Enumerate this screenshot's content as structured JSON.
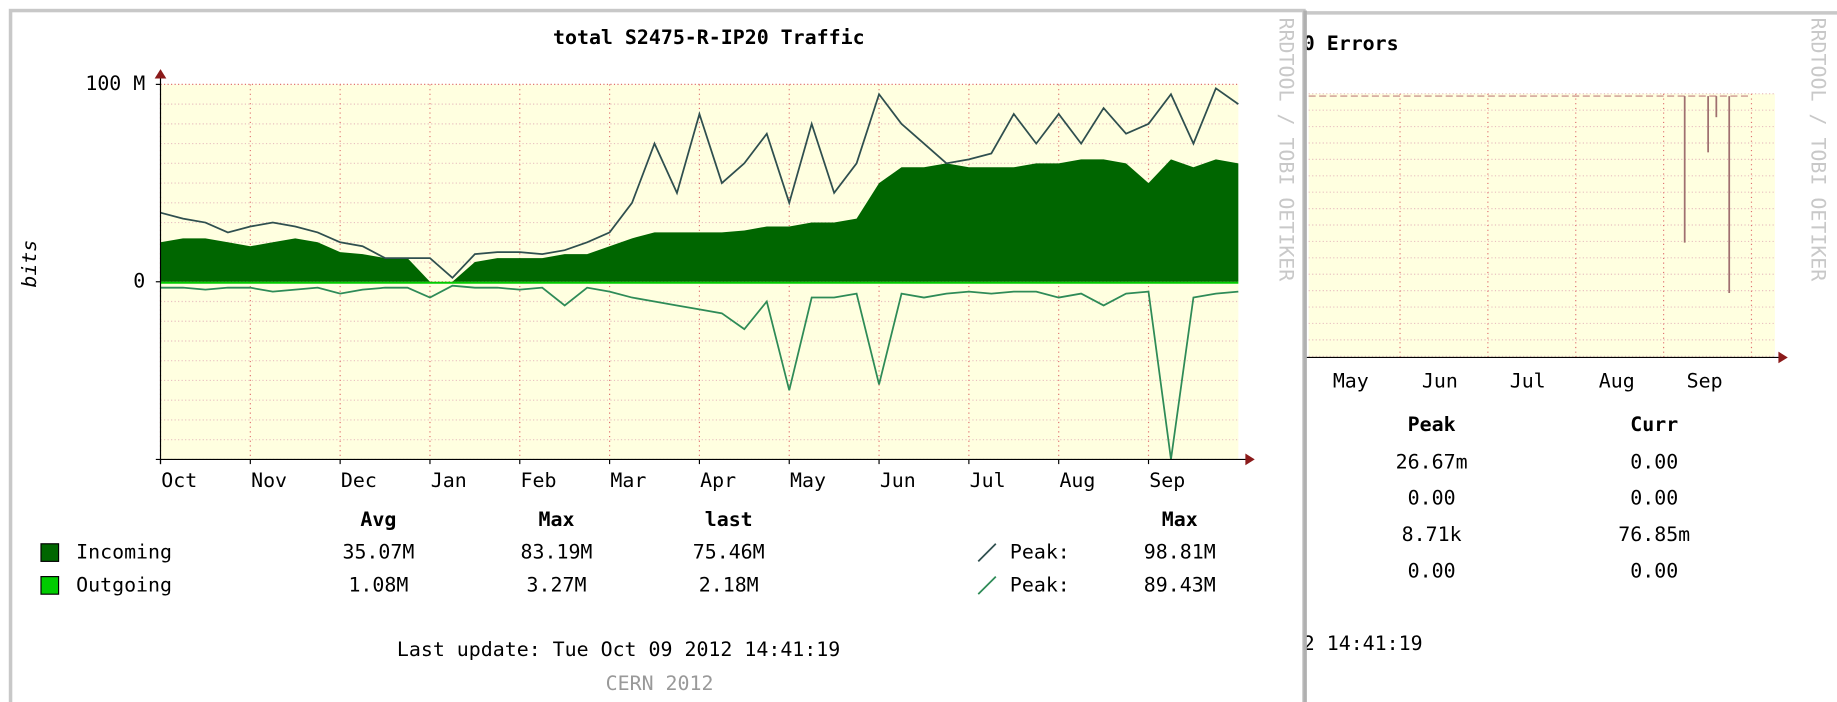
{
  "chart_data": {
    "type": "area",
    "title": "total S2475-R-IP20 Traffic",
    "y_label": "bits",
    "categories": [
      "Oct",
      null,
      null,
      null,
      "Nov",
      null,
      null,
      null,
      "Dec",
      null,
      null,
      null,
      "Jan",
      null,
      null,
      null,
      "Feb",
      null,
      null,
      null,
      "Mar",
      null,
      null,
      null,
      "Apr",
      null,
      null,
      null,
      "May",
      null,
      null,
      null,
      "Jun",
      null,
      null,
      null,
      "Jul",
      null,
      null,
      null,
      "Aug",
      null,
      null,
      null,
      "Sep",
      null,
      null,
      null,
      null
    ],
    "ylim": [
      -90,
      100
    ],
    "yticks": [
      {
        "value": 100,
        "label": "100 M"
      },
      0
    ],
    "minor_yticks": [
      -90,
      -80,
      -70,
      -60,
      -50,
      -40,
      -30,
      -20,
      -10,
      10,
      20,
      30,
      40,
      50,
      60,
      70,
      80,
      90
    ],
    "grid": true,
    "legend_columns": [
      "Avg",
      "Max",
      "last",
      "Max"
    ],
    "series": [
      {
        "name": "Incoming",
        "color": "#006600",
        "style": "area",
        "stats": [
          "35.07M",
          "83.19M",
          "75.46M"
        ],
        "values": [
          20,
          22,
          22,
          20,
          18,
          20,
          22,
          20,
          15,
          14,
          12,
          12,
          0,
          0,
          10,
          12,
          12,
          12,
          14,
          14,
          18,
          22,
          25,
          25,
          25,
          25,
          26,
          28,
          28,
          30,
          30,
          32,
          50,
          58,
          58,
          60,
          58,
          58,
          58,
          60,
          60,
          62,
          62,
          60,
          50,
          62,
          58,
          62,
          60
        ]
      },
      {
        "name": "Outgoing",
        "color": "#00cc00",
        "style": "area",
        "stats": [
          "1.08M",
          "3.27M",
          "2.18M"
        ],
        "values": [
          -1,
          -1,
          -1,
          -1,
          -1,
          -1,
          -1,
          -1,
          -1,
          -1,
          -1,
          -1,
          -1,
          -1,
          -1,
          -1,
          -1,
          -1,
          -1,
          -1,
          -1,
          -1,
          -1,
          -1,
          -1,
          -1,
          -1,
          -1,
          -1,
          -1,
          -1,
          -1,
          -1,
          -1,
          -1,
          -1,
          -1,
          -1,
          -1,
          -1,
          -1,
          -1,
          -1,
          -1,
          -1,
          -1,
          -1,
          -1,
          -1
        ]
      },
      {
        "name": "Peak:",
        "color": "#2f4f4f",
        "style": "line",
        "stats": [
          "98.81M"
        ],
        "values": [
          35,
          32,
          30,
          25,
          28,
          30,
          28,
          25,
          20,
          18,
          12,
          12,
          12,
          2,
          14,
          15,
          15,
          14,
          16,
          20,
          25,
          40,
          70,
          45,
          85,
          50,
          60,
          75,
          40,
          80,
          45,
          60,
          95,
          80,
          70,
          60,
          62,
          65,
          85,
          70,
          85,
          70,
          88,
          75,
          80,
          95,
          70,
          98,
          90
        ]
      },
      {
        "name": "Peak:",
        "color": "#2e8b57",
        "style": "line",
        "stats": [
          "89.43M"
        ],
        "values": [
          -3,
          -3,
          -4,
          -3,
          -3,
          -5,
          -4,
          -3,
          -6,
          -4,
          -3,
          -3,
          -8,
          -2,
          -3,
          -3,
          -4,
          -3,
          -12,
          -3,
          -5,
          -8,
          -10,
          -12,
          -14,
          -16,
          -24,
          -10,
          -55,
          -8,
          -8,
          -6,
          -52,
          -6,
          -8,
          -6,
          -5,
          -6,
          -5,
          -5,
          -8,
          -6,
          -12,
          -6,
          -5,
          -90,
          -8,
          -6,
          -5
        ]
      }
    ],
    "last_update": "Last update: Tue Oct 09 2012 14:41:19",
    "credit": "CERN 2012",
    "watermark": "RRDTOOL / TOBI OETIKER"
  },
  "errors_panel": {
    "title": "0 Errors",
    "months": [
      "May",
      "Jun",
      "Jul",
      "Aug",
      "Sep"
    ],
    "table": {
      "headers": [
        "Peak",
        "Curr"
      ],
      "rows": [
        [
          "26.67m",
          "0.00"
        ],
        [
          "0.00",
          "0.00"
        ],
        [
          "8.71k",
          "76.85m"
        ],
        [
          "0.00",
          "0.00"
        ]
      ]
    },
    "last_update": "2 14:41:19",
    "watermark": "RRDTOOL / TOBI OETIKER"
  }
}
